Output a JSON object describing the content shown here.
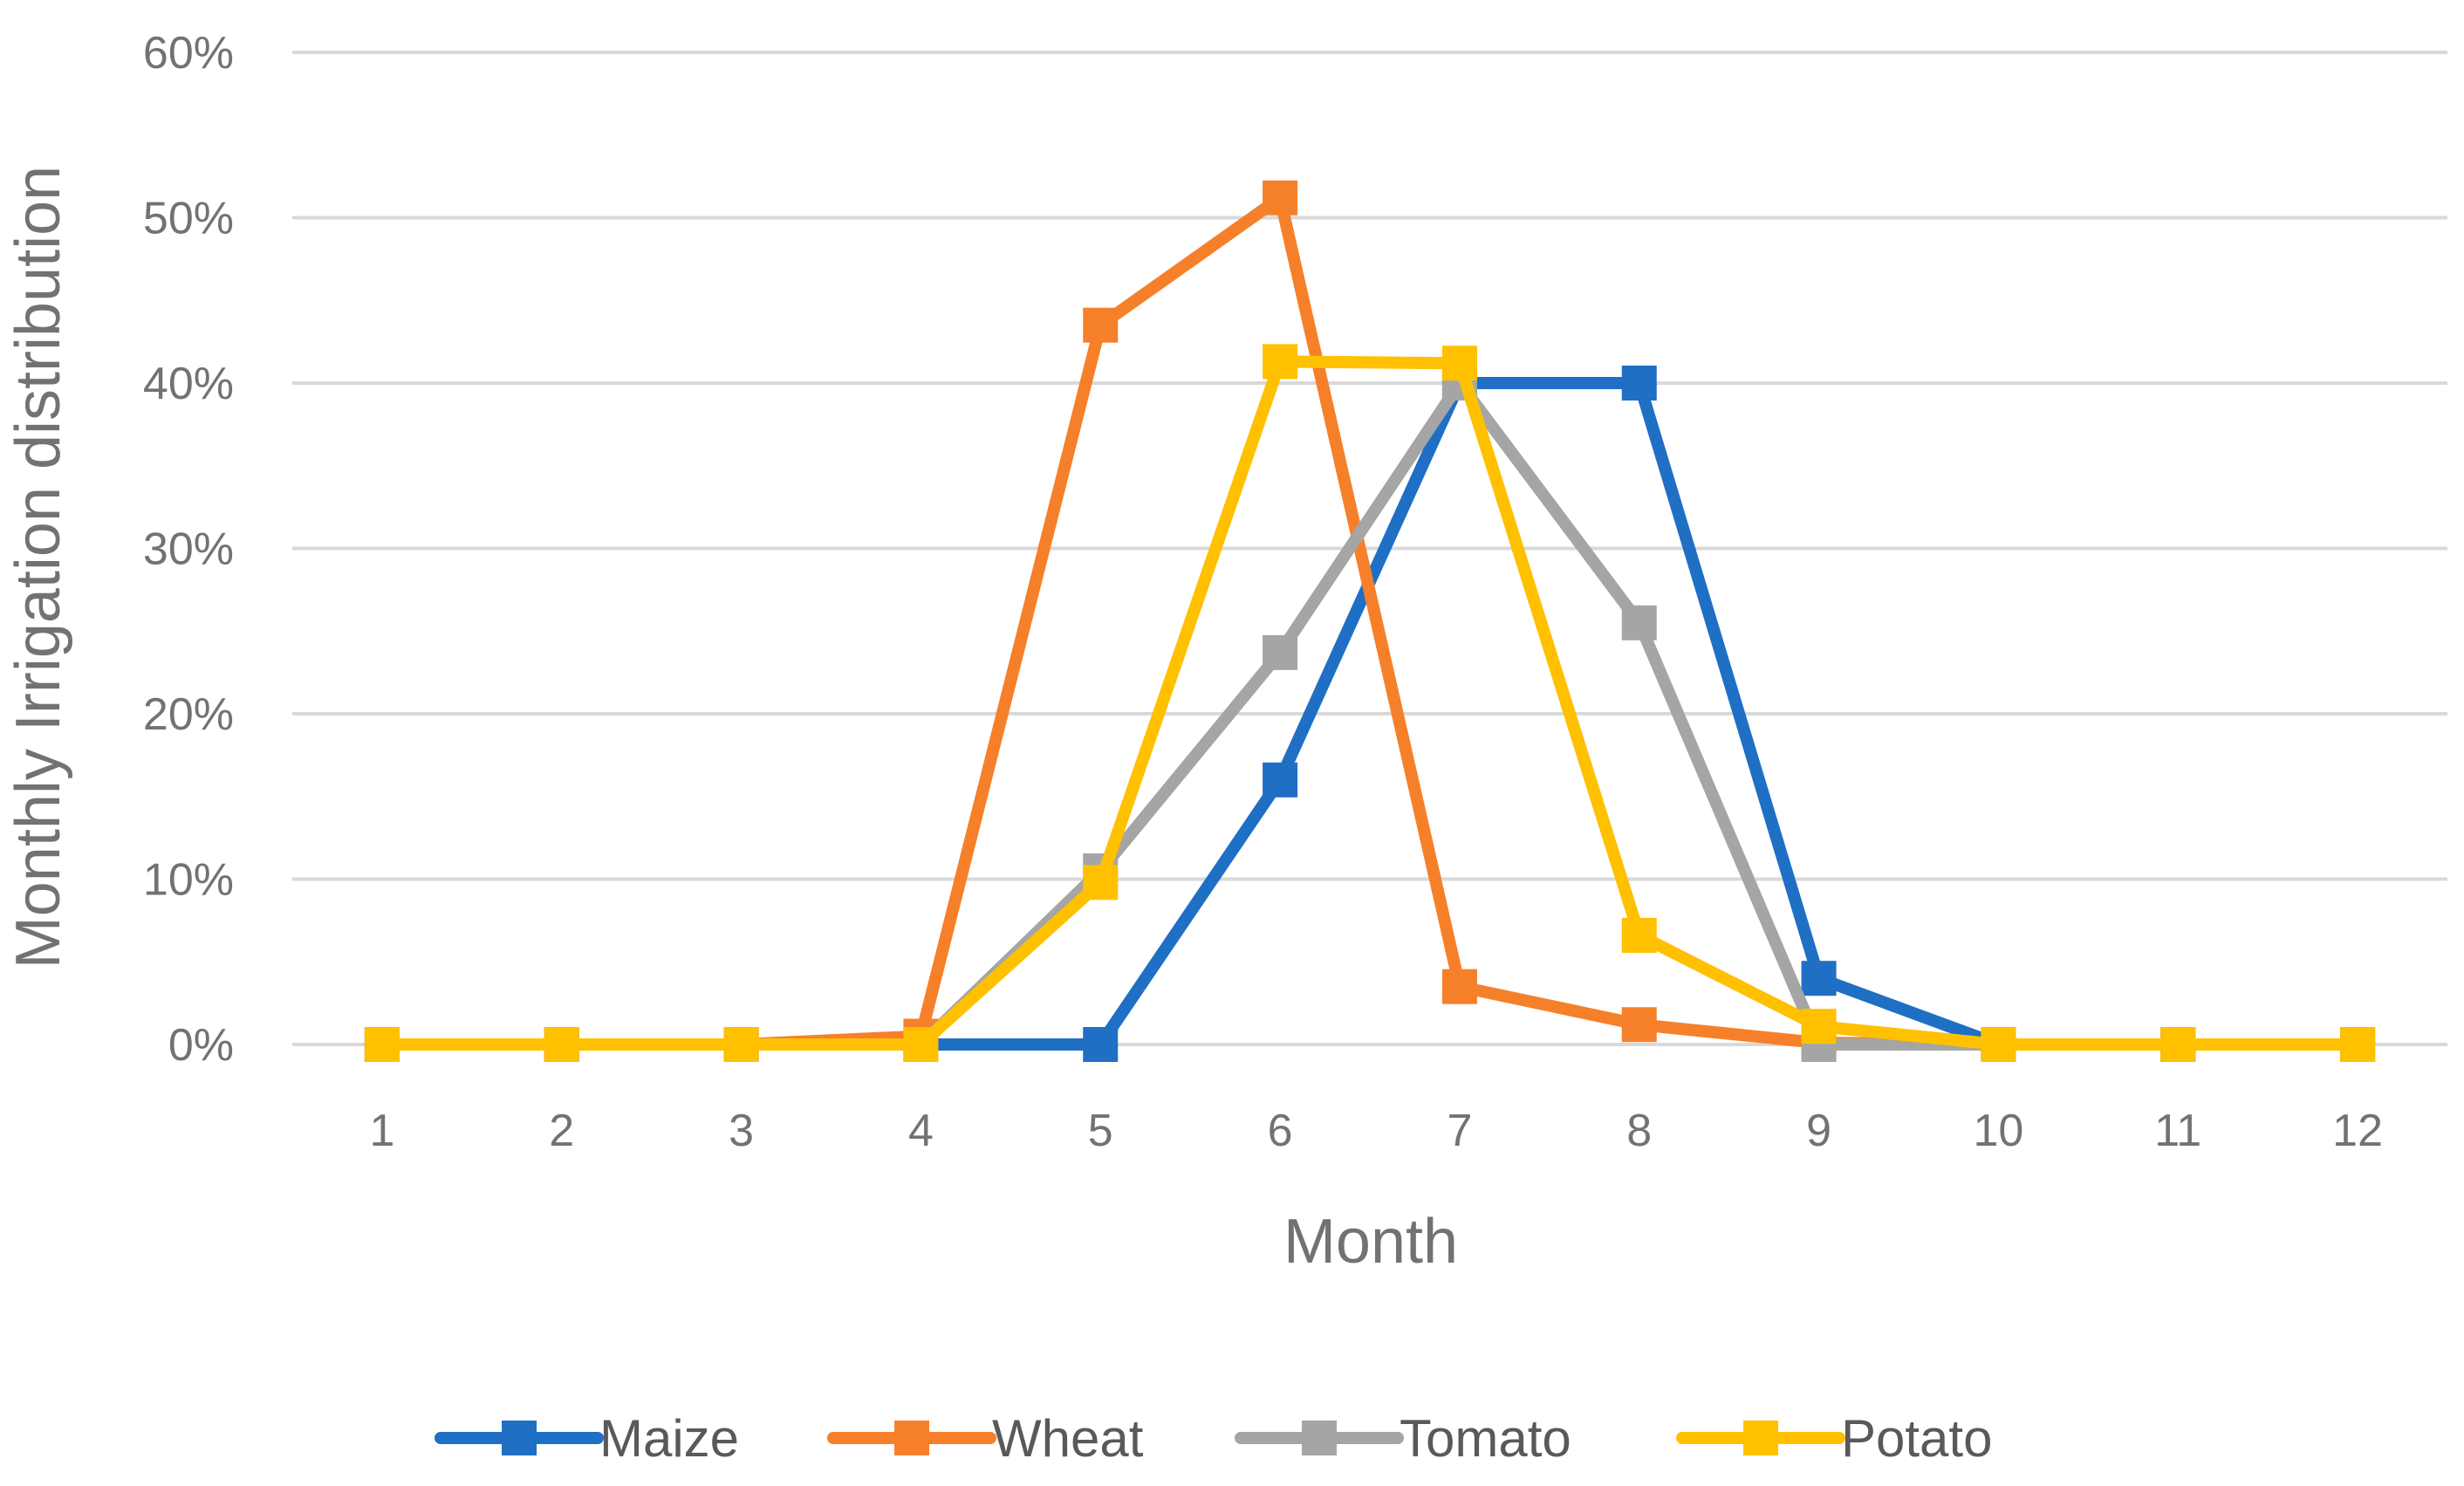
{
  "chart_data": {
    "type": "line",
    "title": "",
    "xlabel": "Month",
    "ylabel": "Monthly Irrigation distribution",
    "categories": [
      "1",
      "2",
      "3",
      "4",
      "5",
      "6",
      "7",
      "8",
      "9",
      "10",
      "11",
      "12"
    ],
    "ylim": [
      0,
      0.6
    ],
    "yticks": [
      0,
      0.1,
      0.2,
      0.3,
      0.4,
      0.5,
      0.6
    ],
    "ytick_labels": [
      "0%",
      "10%",
      "20%",
      "30%",
      "40%",
      "50%",
      "60%"
    ],
    "grid": true,
    "legend_position": "bottom",
    "series": [
      {
        "name": "Maize",
        "color": "#1f6fc5",
        "values": [
          0,
          0,
          0,
          0,
          0,
          0.16,
          0.4,
          0.4,
          0.04,
          0,
          0,
          0
        ]
      },
      {
        "name": "Wheat",
        "color": "#f6802a",
        "values": [
          0,
          0,
          0,
          0.005,
          0.435,
          0.512,
          0.035,
          0.012,
          0.001,
          0,
          0,
          0
        ]
      },
      {
        "name": "Tomato",
        "color": "#a5a5a5",
        "values": [
          0,
          0,
          0,
          0,
          0.105,
          0.237,
          0.4,
          0.255,
          0,
          0,
          0,
          0
        ]
      },
      {
        "name": "Potato",
        "color": "#ffc000",
        "values": [
          0,
          0,
          0,
          0,
          0.098,
          0.413,
          0.412,
          0.066,
          0.011,
          0,
          0,
          0
        ]
      }
    ]
  }
}
